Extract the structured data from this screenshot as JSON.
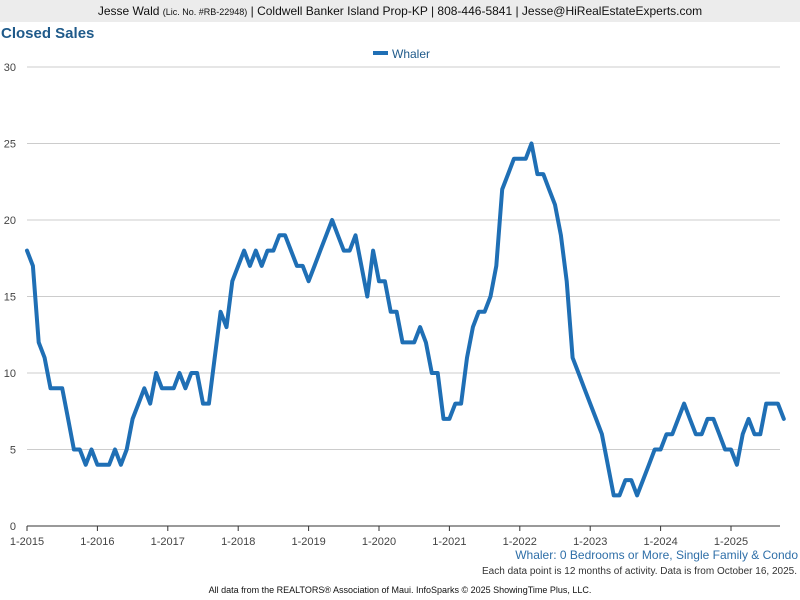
{
  "header": {
    "agent_name": "Jesse Wald",
    "license": "(Lic. No. #RB-22948)",
    "rest": "| Coldwell Banker Island Prop-KP | 808-446-5841 | Jesse@HiRealEstateExperts.com"
  },
  "footer": {
    "series_desc": "Whaler: 0 Bedrooms or More, Single Family & Condo",
    "note": "Each data point is 12 months of activity. Data is from October 16, 2025.",
    "source": "All data from the REALTORS® Association of Maui. InfoSparks © 2025 ShowingTime Plus, LLC."
  },
  "colors": {
    "series": "#1f6fb5",
    "grid": "#cccccc",
    "title": "#1f5a8a"
  },
  "chart_data": {
    "type": "line",
    "title": "Closed Sales",
    "xlabel": "",
    "ylabel": "",
    "ylim": [
      0,
      30
    ],
    "yticks": [
      0,
      5,
      10,
      15,
      20,
      25,
      30
    ],
    "xticks": [
      "1-2015",
      "1-2016",
      "1-2017",
      "1-2018",
      "1-2019",
      "1-2020",
      "1-2021",
      "1-2022",
      "1-2023",
      "1-2024",
      "1-2025"
    ],
    "grid": true,
    "legend_position": "top-center",
    "x_start": "1-2015",
    "x_end": "9-2025",
    "series": [
      {
        "name": "Whaler",
        "values": [
          18,
          17,
          12,
          11,
          9,
          9,
          9,
          7,
          5,
          5,
          4,
          5,
          4,
          4,
          4,
          5,
          4,
          5,
          7,
          8,
          9,
          8,
          10,
          9,
          9,
          9,
          10,
          9,
          10,
          10,
          8,
          8,
          11,
          14,
          13,
          16,
          17,
          18,
          17,
          18,
          17,
          18,
          18,
          19,
          19,
          18,
          17,
          17,
          16,
          17,
          18,
          19,
          20,
          19,
          18,
          18,
          19,
          17,
          15,
          18,
          16,
          16,
          14,
          14,
          12,
          12,
          12,
          13,
          12,
          10,
          10,
          7,
          7,
          8,
          8,
          11,
          13,
          14,
          14,
          15,
          17,
          22,
          23,
          24,
          24,
          24,
          25,
          23,
          23,
          22,
          21,
          19,
          16,
          11,
          10,
          9,
          8,
          7,
          6,
          4,
          2,
          2,
          3,
          3,
          2,
          3,
          4,
          5,
          5,
          6,
          6,
          7,
          8,
          7,
          6,
          6,
          7,
          7,
          6,
          5,
          5,
          4,
          6,
          7,
          6,
          6,
          8,
          8,
          8,
          7
        ]
      }
    ]
  }
}
